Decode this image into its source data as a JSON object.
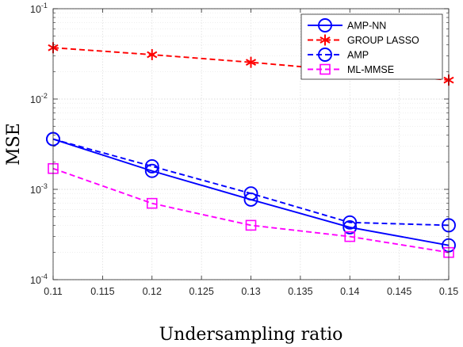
{
  "chart_data": {
    "type": "line",
    "xlabel": "Undersampling ratio",
    "ylabel": "MSE",
    "xlim": [
      0.11,
      0.15
    ],
    "ylim": [
      0.0001,
      0.1
    ],
    "yscale": "log",
    "grid": true,
    "legend_position": "top-right",
    "x_tick_labels": [
      "0.11",
      "0.115",
      "0.12",
      "0.125",
      "0.13",
      "0.135",
      "0.14",
      "0.145",
      "0.15"
    ],
    "x_ticks": [
      0.11,
      0.115,
      0.12,
      0.125,
      0.13,
      0.135,
      0.14,
      0.145,
      0.15
    ],
    "y_ticks": [
      {
        "value": 0.0001,
        "base": "10",
        "exp": "-4"
      },
      {
        "value": 0.001,
        "base": "10",
        "exp": "-3"
      },
      {
        "value": 0.01,
        "base": "10",
        "exp": "-2"
      },
      {
        "value": 0.1,
        "base": "10",
        "exp": "-1"
      }
    ],
    "x": [
      0.11,
      0.12,
      0.13,
      0.14,
      0.15
    ],
    "series": [
      {
        "name": "AMP-NN",
        "color": "#0000ff",
        "dash": "solid",
        "marker": "circle",
        "values": [
          0.0036,
          0.0016,
          0.00077,
          0.00038,
          0.00024
        ]
      },
      {
        "name": "GROUP LASSO",
        "color": "#ff0000",
        "dash": "dashed",
        "marker": "asterisk",
        "values": [
          0.037,
          0.031,
          0.0255,
          0.0205,
          0.0162
        ]
      },
      {
        "name": "AMP",
        "color": "#0000ff",
        "dash": "dashed",
        "marker": "circle",
        "values": [
          0.0036,
          0.0018,
          0.0009,
          0.00043,
          0.0004
        ]
      },
      {
        "name": "ML-MMSE",
        "color": "#ff00ff",
        "dash": "dashed",
        "marker": "square",
        "values": [
          0.0017,
          0.0007,
          0.0004,
          0.0003,
          0.0002
        ]
      }
    ]
  }
}
